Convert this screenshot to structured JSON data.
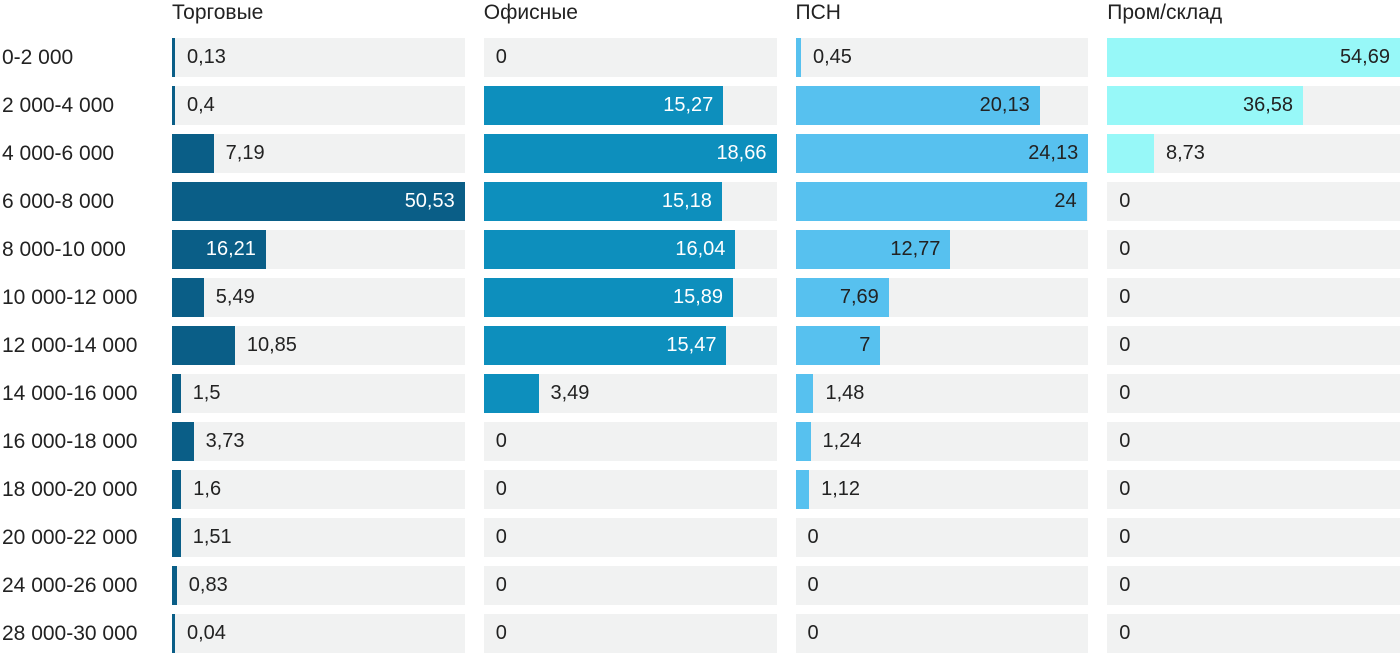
{
  "chart_data": {
    "type": "bar",
    "orientation": "horizontal",
    "scaling": "each column scaled to its own max value",
    "grid": false,
    "track_color": "#f1f2f2",
    "text_color": "#222222",
    "categories": [
      "0-2 000",
      "2 000-4 000",
      "4 000-6 000",
      "6 000-8 000",
      "8 000-10 000",
      "10 000-12 000",
      "12 000-14 000",
      "14 000-16 000",
      "16 000-18 000",
      "18 000-20 000",
      "20 000-22 000",
      "24 000-26 000",
      "28 000-30 000"
    ],
    "series": [
      {
        "name": "Торговые",
        "color": "#0a5e87",
        "inside_label_color": "#ffffff",
        "values": [
          0.13,
          0.4,
          7.19,
          50.53,
          16.21,
          5.49,
          10.85,
          1.5,
          3.73,
          1.6,
          1.51,
          0.83,
          0.04
        ],
        "labels": [
          "0,13",
          "0,4",
          "7,19",
          "50,53",
          "16,21",
          "5,49",
          "10,85",
          "1,5",
          "3,73",
          "1,6",
          "1,51",
          "0,83",
          "0,04"
        ]
      },
      {
        "name": "Офисные",
        "color": "#0d8fbd",
        "inside_label_color": "#ffffff",
        "values": [
          0,
          15.27,
          18.66,
          15.18,
          16.04,
          15.89,
          15.47,
          3.49,
          0,
          0,
          0,
          0,
          0
        ],
        "labels": [
          "0",
          "15,27",
          "18,66",
          "15,18",
          "16,04",
          "15,89",
          "15,47",
          "3,49",
          "0",
          "0",
          "0",
          "0",
          "0"
        ]
      },
      {
        "name": "ПСН",
        "color": "#57c1ef",
        "inside_label_color": "#222222",
        "values": [
          0.45,
          20.13,
          24.13,
          24,
          12.77,
          7.69,
          7,
          1.48,
          1.24,
          1.12,
          0,
          0,
          0
        ],
        "labels": [
          "0,45",
          "20,13",
          "24,13",
          "24",
          "12,77",
          "7,69",
          "7",
          "1,48",
          "1,24",
          "1,12",
          "0",
          "0",
          "0"
        ]
      },
      {
        "name": "Пром/склад",
        "color": "#97f8f8",
        "inside_label_color": "#222222",
        "values": [
          54.69,
          36.58,
          8.73,
          0,
          0,
          0,
          0,
          0,
          0,
          0,
          0,
          0,
          0
        ],
        "labels": [
          "54,69",
          "36,58",
          "8,73",
          "0",
          "0",
          "0",
          "0",
          "0",
          "0",
          "0",
          "0",
          "0",
          "0"
        ]
      }
    ]
  }
}
